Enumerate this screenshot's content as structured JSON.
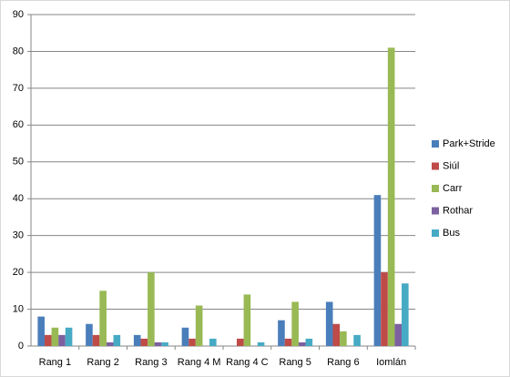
{
  "chart_data": {
    "type": "bar",
    "categories": [
      "Rang 1",
      "Rang 2",
      "Rang 3",
      "Rang 4 M",
      "Rang 4 C",
      "Rang 5",
      "Rang 6",
      "Iomlán"
    ],
    "series": [
      {
        "name": "Park+Stride",
        "color": "#4a7ebb",
        "values": [
          8,
          6,
          3,
          5,
          0,
          7,
          12,
          41
        ]
      },
      {
        "name": "Siúl",
        "color": "#be4b48",
        "values": [
          3,
          3,
          2,
          2,
          2,
          2,
          6,
          20
        ]
      },
      {
        "name": "Carr",
        "color": "#98b954",
        "values": [
          5,
          15,
          20,
          11,
          14,
          12,
          4,
          81
        ]
      },
      {
        "name": "Rothar",
        "color": "#7d60a0",
        "values": [
          3,
          1,
          1,
          0,
          0,
          1,
          0,
          6
        ]
      },
      {
        "name": "Bus",
        "color": "#46aac5",
        "values": [
          5,
          3,
          1,
          2,
          1,
          2,
          3,
          17
        ]
      }
    ],
    "ylim": [
      0,
      90
    ],
    "yticks": [
      0,
      10,
      20,
      30,
      40,
      50,
      60,
      70,
      80,
      90
    ],
    "grid": true,
    "legend": "right"
  }
}
